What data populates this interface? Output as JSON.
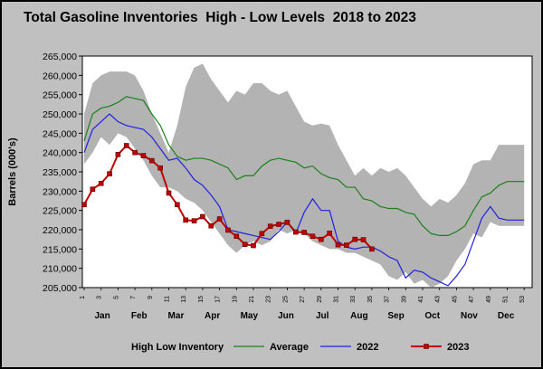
{
  "chart_data": {
    "type": "line",
    "title": "Total Gasoline Inventories  High - Low Levels  2018 to 2023",
    "ylabel": "Barrels (000's)",
    "xlabel": "",
    "ylim": [
      205000,
      265000
    ],
    "y_ticks": [
      "205,000",
      "210,000",
      "215,000",
      "220,000",
      "225,000",
      "230,000",
      "235,000",
      "240,000",
      "245,000",
      "250,000",
      "255,000",
      "260,000",
      "265,000"
    ],
    "x_ticks": [
      "1",
      "3",
      "5",
      "7",
      "9",
      "11",
      "13",
      "15",
      "17",
      "19",
      "21",
      "23",
      "25",
      "27",
      "29",
      "31",
      "33",
      "35",
      "37",
      "39",
      "41",
      "43",
      "45",
      "47",
      "49",
      "51",
      "53"
    ],
    "months": [
      "Jan",
      "Feb",
      "Mar",
      "Apr",
      "May",
      "Jun",
      "Jul",
      "Aug",
      "Sep",
      "Oct",
      "Nov",
      "Dec"
    ],
    "grid": false,
    "legend_position": "bottom",
    "colors": {
      "band": "#b3b3b3",
      "average": "#1a801a",
      "y2022": "#2020e0",
      "y2023": "#c00000",
      "plot_bg": "#ffffff"
    },
    "series": [
      {
        "name": "High Low Inventory",
        "kind": "band",
        "high": [
          250000,
          258000,
          260000,
          261000,
          261000,
          261000,
          260000,
          256000,
          250000,
          245000,
          240000,
          247000,
          257000,
          262000,
          263000,
          259000,
          256000,
          253000,
          256000,
          255000,
          258000,
          258000,
          256000,
          255000,
          256000,
          252000,
          248000,
          247000,
          247500,
          247000,
          242000,
          238000,
          234000,
          236000,
          234000,
          236000,
          235000,
          236000,
          234000,
          231000,
          228000,
          226000,
          228000,
          227000,
          229000,
          232000,
          237000,
          238000,
          238000,
          242000,
          242000,
          242000,
          242000
        ],
        "low": [
          237000,
          240000,
          244000,
          242000,
          245000,
          244000,
          241000,
          238000,
          234000,
          231000,
          231000,
          230000,
          228000,
          227000,
          225000,
          222000,
          219000,
          216000,
          214000,
          216000,
          217000,
          216000,
          217000,
          220000,
          219000,
          220000,
          219000,
          217000,
          216000,
          215000,
          215000,
          214000,
          214000,
          213000,
          212000,
          211000,
          208000,
          207000,
          209000,
          206000,
          207000,
          205000,
          206000,
          208000,
          212000,
          215000,
          219000,
          218000,
          222000,
          221000,
          221000,
          221000,
          221000
        ]
      },
      {
        "name": "Average",
        "values": [
          243000,
          250000,
          251500,
          252000,
          253000,
          254500,
          254000,
          253500,
          250000,
          247000,
          242000,
          239000,
          238000,
          238500,
          238500,
          238000,
          237000,
          236000,
          233000,
          234000,
          234000,
          236500,
          238000,
          238500,
          238000,
          237500,
          236000,
          236500,
          234500,
          233500,
          233000,
          231000,
          231000,
          228000,
          227500,
          226000,
          225500,
          225500,
          224500,
          224000,
          221000,
          219000,
          218500,
          218500,
          219500,
          221000,
          225000,
          228500,
          229500,
          231500,
          232500,
          232500,
          232500
        ]
      },
      {
        "name": "2022",
        "values": [
          240000,
          246000,
          248000,
          250000,
          248000,
          247000,
          246500,
          246000,
          244000,
          241000,
          238000,
          238500,
          236000,
          233000,
          231500,
          229000,
          226000,
          220000,
          219500,
          219000,
          218500,
          218000,
          217500,
          219500,
          222000,
          219000,
          224500,
          228000,
          225000,
          225000,
          217000,
          215500,
          215000,
          215500,
          215500,
          214500,
          213000,
          212000,
          207500,
          209500,
          209000,
          207500,
          206500,
          205500,
          208000,
          211000,
          217000,
          223000,
          226000,
          223000,
          222500,
          222500,
          222500
        ]
      },
      {
        "name": "2023",
        "values": [
          226500,
          230500,
          232000,
          234500,
          239500,
          241800,
          240000,
          239200,
          237900,
          236000,
          229500,
          226500,
          222500,
          222300,
          223400,
          221000,
          222800,
          219900,
          218300,
          216200,
          215900,
          219000,
          220900,
          221400,
          221900,
          219400,
          219300,
          218300,
          217500,
          219100,
          216100,
          216000,
          217500,
          217400,
          215000
        ]
      }
    ]
  }
}
